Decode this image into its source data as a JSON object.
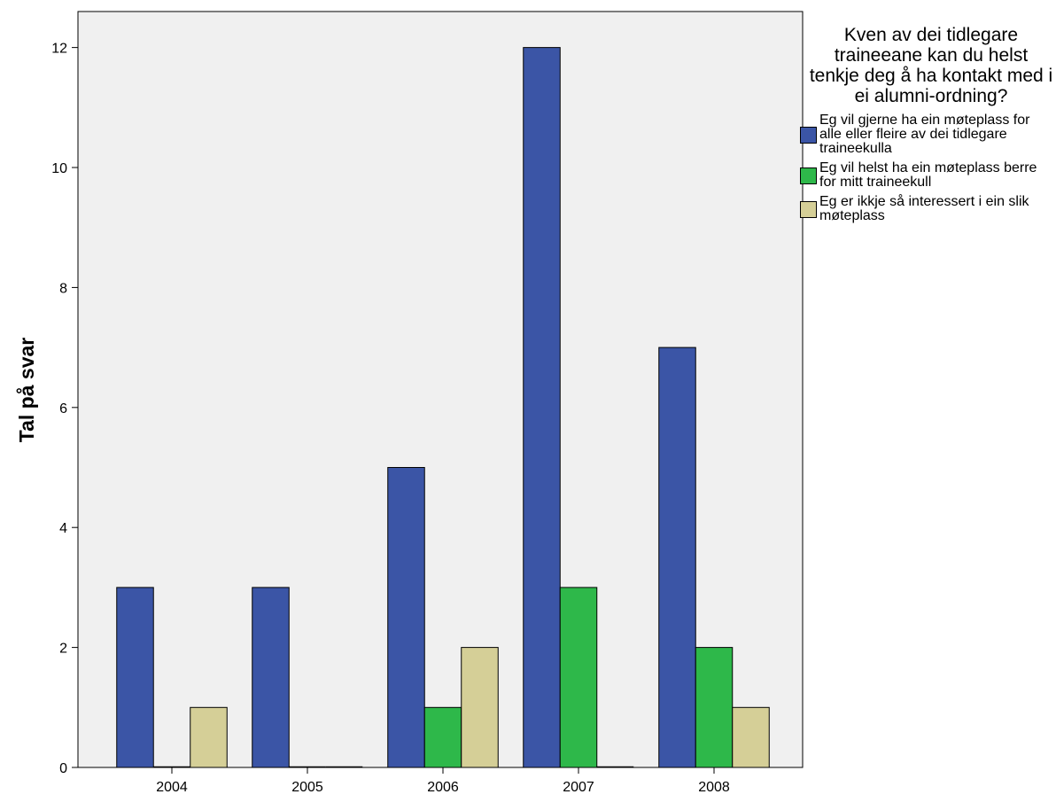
{
  "chart_data": {
    "type": "bar",
    "title": "",
    "xlabel": "",
    "ylabel": "Tal på svar",
    "categories": [
      "2004",
      "2005",
      "2006",
      "2007",
      "2008"
    ],
    "ylim": [
      0,
      12.6
    ],
    "yticks": [
      0,
      2,
      4,
      6,
      8,
      10,
      12
    ],
    "grid": false,
    "legend_position": "right",
    "legend_title": "Kven av dei tidlegare traineeane kan du helst tenkje deg å ha kontakt med i ei alumni-ordning?",
    "series": [
      {
        "name": "Eg vil gjerne ha ein møteplass for alle eller fleire av dei tidlegare traineekulla",
        "color": "#3b55a6",
        "values": [
          3,
          3,
          5,
          12,
          7
        ]
      },
      {
        "name": "Eg vil helst ha ein møteplass berre for mitt traineekull",
        "color": "#2eb84a",
        "values": [
          0,
          0,
          1,
          3,
          2
        ]
      },
      {
        "name": "Eg er ikkje så interessert i ein slik møteplass",
        "color": "#d5cf97",
        "values": [
          1,
          0,
          2,
          0,
          1
        ]
      }
    ],
    "plot_background": "#f0f0f0"
  }
}
